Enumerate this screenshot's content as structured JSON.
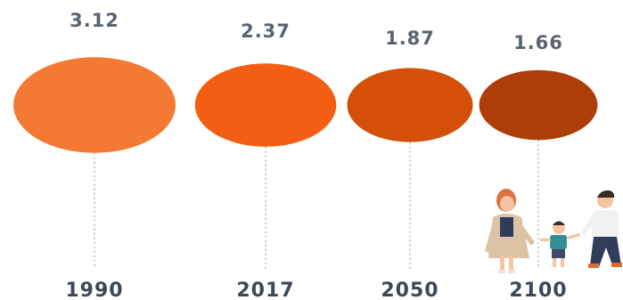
{
  "chart_data": {
    "type": "bubble",
    "categories": [
      "1990",
      "2017",
      "2050",
      "2100"
    ],
    "values": [
      3.12,
      2.37,
      1.87,
      1.66
    ],
    "value_labels": [
      "3.12",
      "2.37",
      "1.87",
      "1.66"
    ],
    "colors": [
      "#f47a34",
      "#f45e12",
      "#d44f08",
      "#ad3e08"
    ],
    "connector_style": "dotted",
    "legend": "none"
  },
  "decoration": {
    "illustration": "family-walking-illustration"
  }
}
